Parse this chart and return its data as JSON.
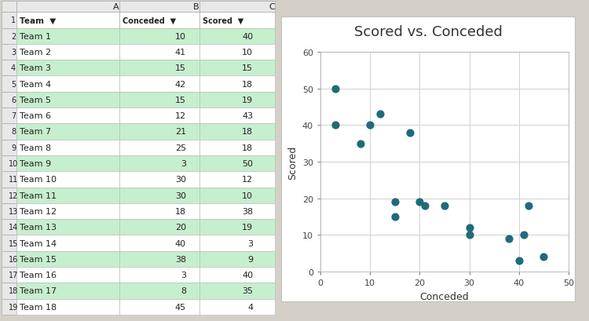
{
  "teams": [
    "Team 1",
    "Team 2",
    "Team 3",
    "Team 4",
    "Team 5",
    "Team 6",
    "Team 7",
    "Team 8",
    "Team 9",
    "Team 10",
    "Team 11",
    "Team 12",
    "Team 13",
    "Team 14",
    "Team 15",
    "Team 16",
    "Team 17",
    "Team 18"
  ],
  "conceded": [
    10,
    41,
    15,
    42,
    15,
    12,
    21,
    25,
    3,
    30,
    30,
    18,
    20,
    40,
    38,
    3,
    8,
    45
  ],
  "scored": [
    40,
    10,
    15,
    18,
    19,
    43,
    18,
    18,
    50,
    12,
    10,
    38,
    19,
    3,
    9,
    40,
    35,
    4
  ],
  "chart_title": "Scored vs. Conceded",
  "xlabel": "Conceded",
  "ylabel": "Scored",
  "xlim": [
    0,
    50
  ],
  "ylim": [
    0,
    60
  ],
  "xticks": [
    0,
    10,
    20,
    30,
    40,
    50
  ],
  "yticks": [
    0,
    10,
    20,
    30,
    40,
    50,
    60
  ],
  "scatter_color": "#1f6b7a",
  "scatter_size": 40,
  "table_alt_row_bg": "#c6efce",
  "table_white_row_bg": "#ffffff",
  "table_header_bg": "#ffffff",
  "col_headers": [
    "Team",
    "Conceded",
    "Scored"
  ],
  "excel_bg": "#d4d0c8",
  "chart_area_bg": "#ffffff",
  "grid_color": "#d0d0d0",
  "title_fontsize": 13,
  "axis_label_fontsize": 9,
  "tick_fontsize": 8,
  "table_fontsize": 8,
  "green_indices": [
    0,
    2,
    4,
    6,
    8,
    10,
    12,
    14,
    16
  ],
  "col_letter_bg": "#e8e8e8",
  "row_num_bg": "#e8e8e8",
  "border_color": "#a0a0a0",
  "cell_border": "#b8b8b8"
}
